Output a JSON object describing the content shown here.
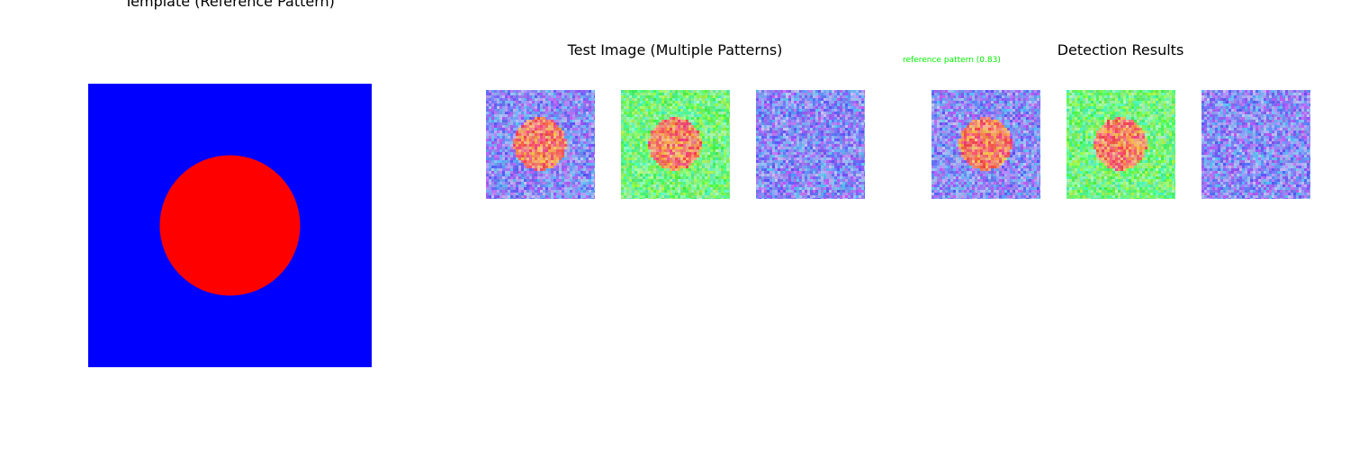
{
  "titles": {
    "template": "Template (Reference Pattern)",
    "test": "Test Image (Multiple Patterns)",
    "results": "Detection Results"
  },
  "detection_label": "reference pattern (0.83)",
  "colors": {
    "template_bg": "#0000ff",
    "template_circle": "#ff0000",
    "label": "#00ee00"
  },
  "test_tiles": [
    {
      "background": "blue-noise",
      "has_circle": true
    },
    {
      "background": "green-noise",
      "has_circle": true
    },
    {
      "background": "blue-noise",
      "has_circle": false
    }
  ],
  "result_tiles": [
    {
      "background": "blue-noise",
      "has_circle": true
    },
    {
      "background": "green-noise",
      "has_circle": true
    },
    {
      "background": "blue-noise",
      "has_circle": false
    }
  ]
}
